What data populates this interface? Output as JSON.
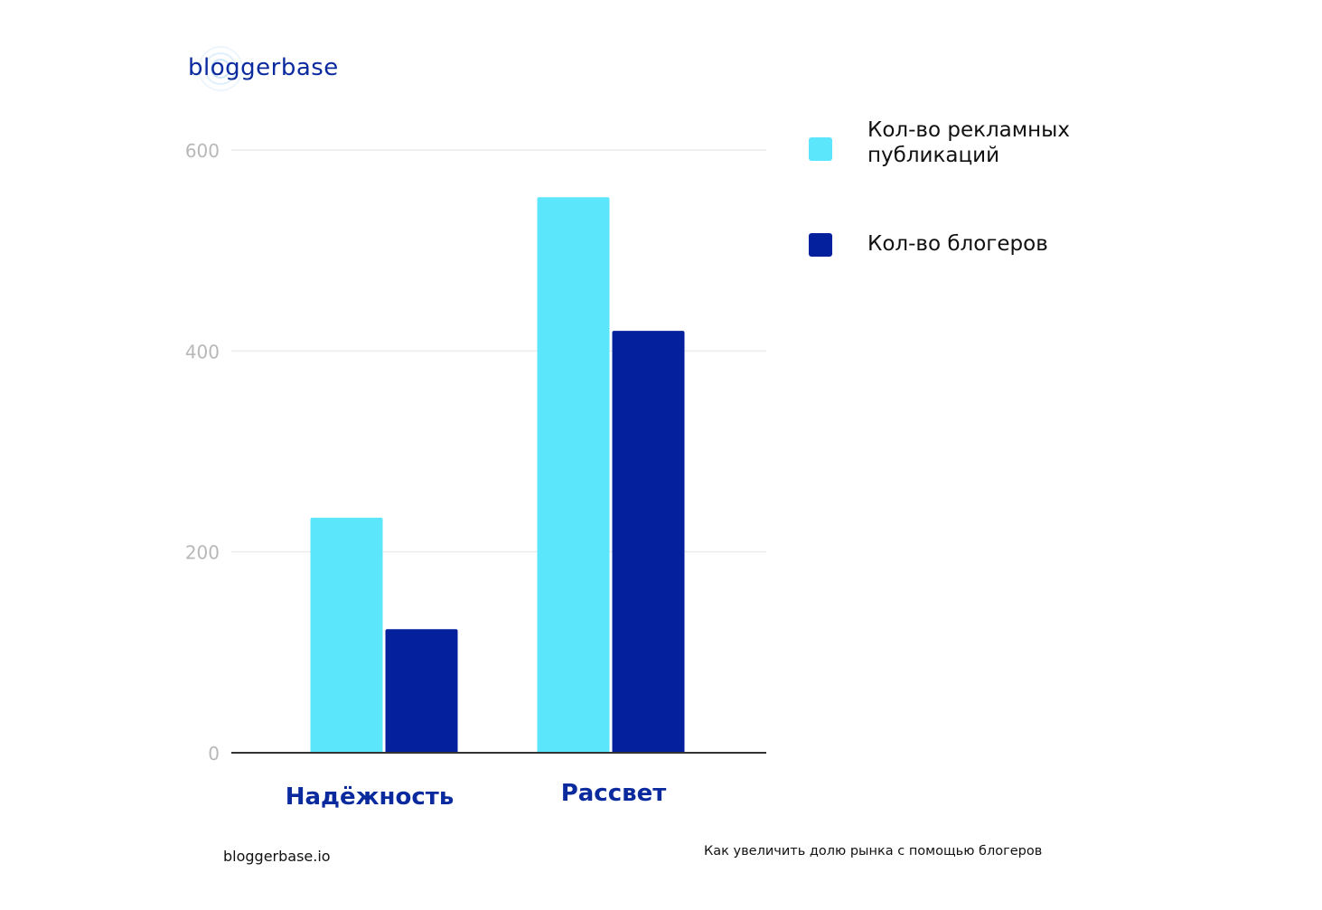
{
  "logo": {
    "text": "bloggerbase"
  },
  "chart_data": {
    "type": "bar",
    "categories": [
      "Надёжность",
      "Рассвет"
    ],
    "series": [
      {
        "name": "Кол-во рекламных публикаций",
        "color": "#5ce6fb",
        "values": [
          234,
          553
        ]
      },
      {
        "name": "Кол-во блогеров",
        "color": "#04209d",
        "values": [
          123,
          420
        ]
      }
    ],
    "ylim": [
      0,
      600
    ],
    "yticks": [
      0,
      200,
      400,
      600
    ],
    "grid": true,
    "legend_position": "right",
    "category_label_color": "#0a2a9e"
  },
  "legend": {
    "items": [
      {
        "label": "Кол-во рекламных публикаций",
        "color": "#5ce6fb"
      },
      {
        "label": "Кол-во блогеров",
        "color": "#04209d"
      }
    ]
  },
  "footer": {
    "left": "bloggerbase.io",
    "right": "Как увеличить долю рынка с помощью блогеров"
  }
}
